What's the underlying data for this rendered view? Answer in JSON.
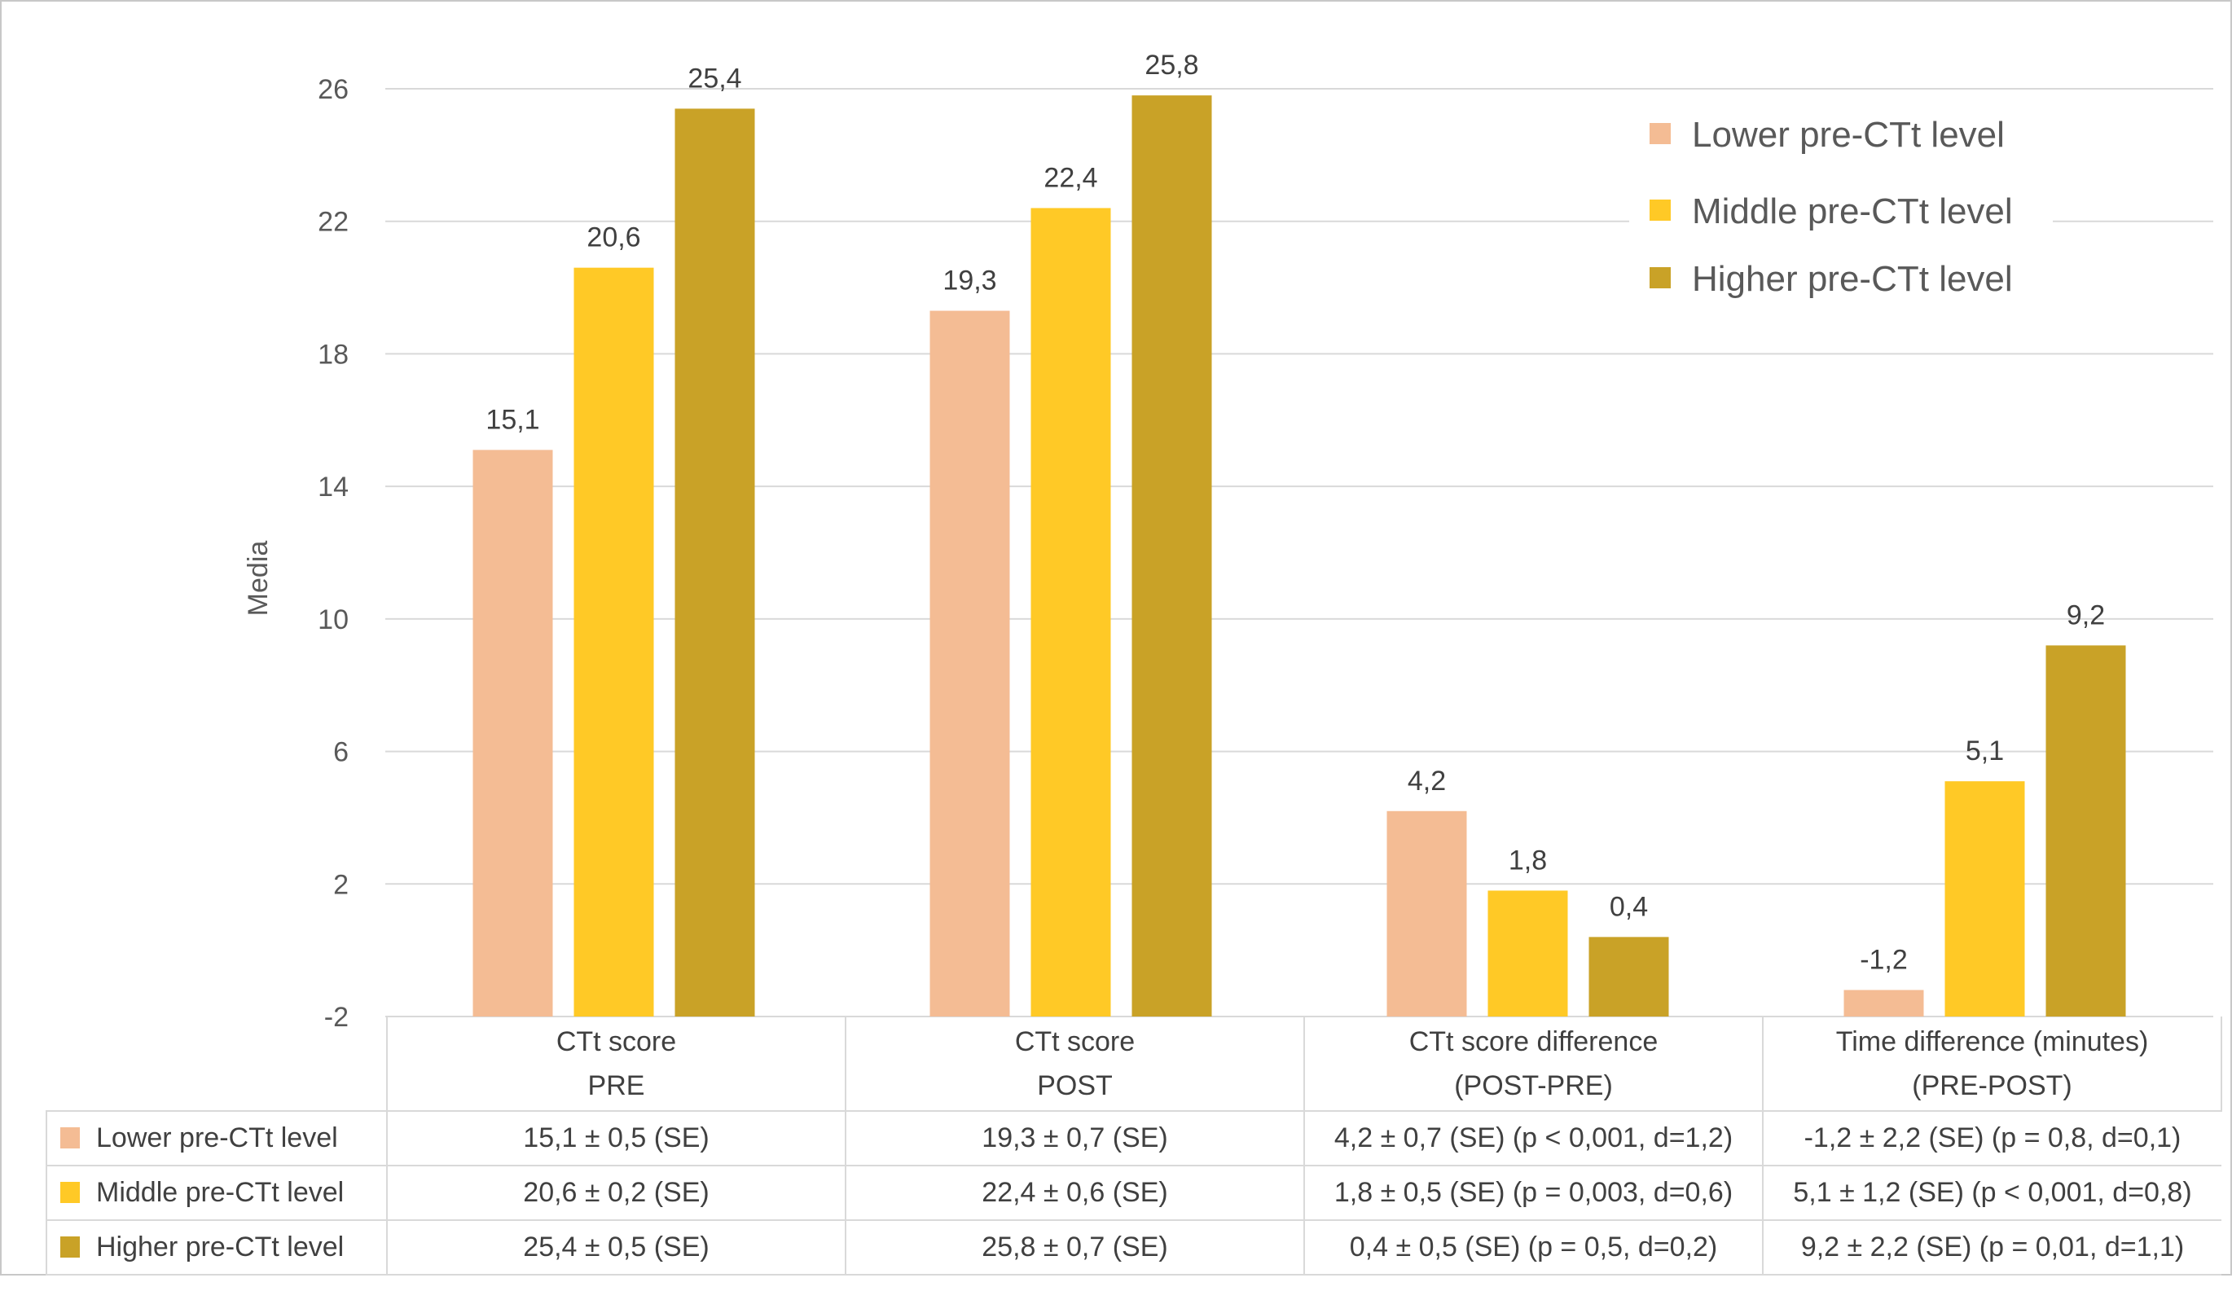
{
  "chart_data": {
    "type": "bar",
    "ylabel": "Media",
    "xlabel": "",
    "ylim": [
      -2,
      26
    ],
    "yticks": [
      -2,
      2,
      6,
      10,
      14,
      18,
      22,
      26
    ],
    "ytick_labels": [
      "-2",
      "2",
      "6",
      "10",
      "14",
      "18",
      "22",
      "26"
    ],
    "grid": true,
    "legend_position": "top-right",
    "categories": [
      [
        "CTt score",
        "PRE"
      ],
      [
        "CTt score",
        "POST"
      ],
      [
        "CTt score difference",
        "(POST-PRE)"
      ],
      [
        "Time difference (minutes)",
        "(PRE-POST)"
      ]
    ],
    "series": [
      {
        "name": "Lower pre-CTt level",
        "color": "#F4BC94",
        "values": [
          15.1,
          19.3,
          4.2,
          -1.2
        ],
        "labels": [
          "15,1",
          "19,3",
          "4,2",
          "-1,2"
        ]
      },
      {
        "name": "Middle pre-CTt level",
        "color": "#FFC926",
        "values": [
          20.6,
          22.4,
          1.8,
          5.1
        ],
        "labels": [
          "20,6",
          "22,4",
          "1,8",
          "5,1"
        ]
      },
      {
        "name": "Higher pre-CTt level",
        "color": "#C9A227",
        "values": [
          25.4,
          25.8,
          0.4,
          9.2
        ],
        "labels": [
          "25,4",
          "25,8",
          "0,4",
          "9,2"
        ]
      }
    ],
    "data_table": {
      "rows": [
        {
          "label": "Lower pre-CTt level",
          "cells": [
            "15,1 ± 0,5 (SE)",
            "19,3 ± 0,7 (SE)",
            "4,2 ± 0,7 (SE)  (p < 0,001, d=1,2)",
            "-1,2 ± 2,2 (SE)  (p = 0,8, d=0,1)"
          ]
        },
        {
          "label": "Middle pre-CTt level",
          "cells": [
            "20,6 ± 0,2 (SE)",
            "22,4 ± 0,6 (SE)",
            "1,8 ± 0,5 (SE)  (p = 0,003, d=0,6)",
            "5,1 ± 1,2 (SE)  (p < 0,001, d=0,8)"
          ]
        },
        {
          "label": "Higher pre-CTt level",
          "cells": [
            "25,4 ± 0,5 (SE)",
            "25,8 ± 0,7 (SE)",
            "0,4 ± 0,5 (SE)  (p = 0,5, d=0,2)",
            "9,2 ± 2,2 (SE)  (p = 0,01, d=1,1)"
          ]
        }
      ]
    },
    "colors": {
      "text": "#595959",
      "grid": "#D9D9D9"
    }
  }
}
